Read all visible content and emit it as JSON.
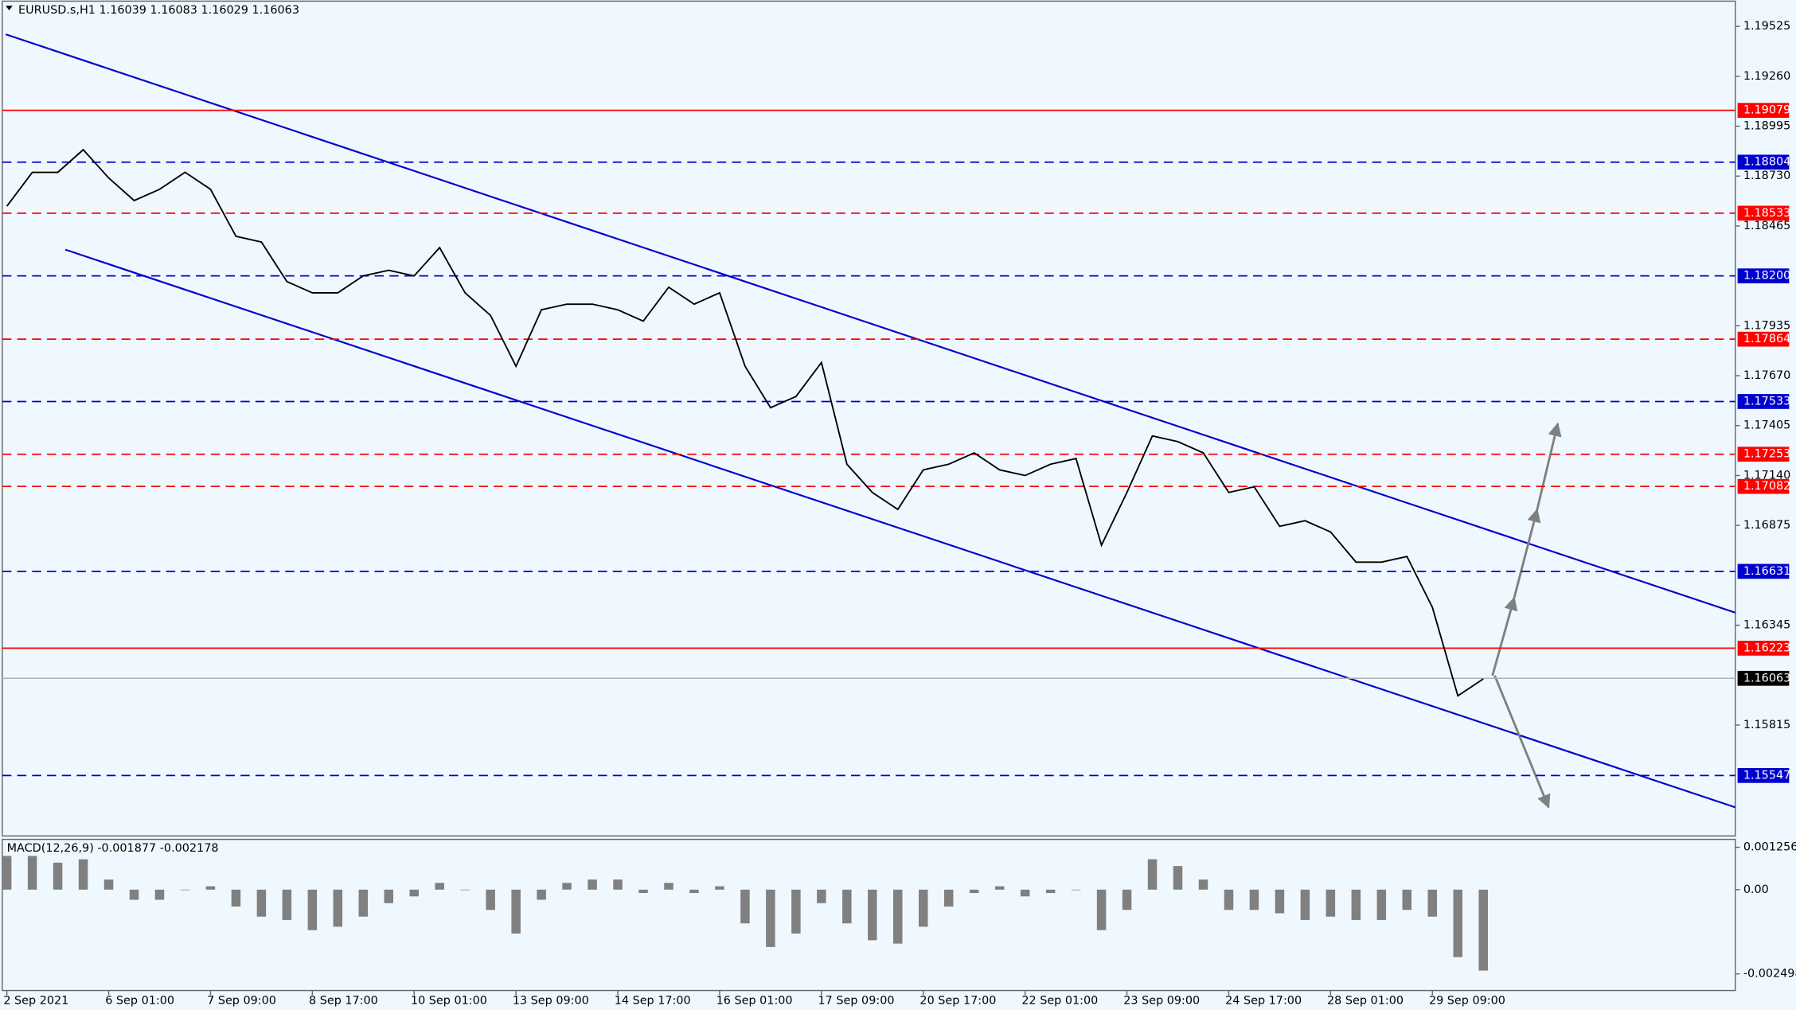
{
  "chart_data": [
    {
      "type": "line",
      "title": "EURUSD.s,H1  1.16039 1.16083 1.16029 1.16063",
      "categories": [
        "2 Sep 2021",
        null,
        null,
        null,
        "6 Sep 01:00",
        null,
        null,
        null,
        "7 Sep 09:00",
        null,
        null,
        null,
        "8 Sep 17:00",
        null,
        null,
        null,
        "10 Sep 01:00",
        null,
        null,
        null,
        "13 Sep 09:00",
        null,
        null,
        null,
        "14 Sep 17:00",
        null,
        null,
        null,
        "16 Sep 01:00",
        null,
        null,
        null,
        "17 Sep 09:00",
        null,
        null,
        null,
        "20 Sep 17:00",
        null,
        null,
        null,
        "22 Sep 01:00",
        null,
        null,
        null,
        "23 Sep 09:00",
        null,
        null,
        null,
        "24 Sep 17:00",
        null,
        null,
        null,
        "28 Sep 01:00",
        null,
        null,
        null,
        "29 Sep 09:00",
        null,
        null
      ],
      "series": [
        {
          "color": "#000000",
          "values": [
            1.1857,
            1.1875,
            1.1875,
            1.1887,
            1.1872,
            1.186,
            1.1866,
            1.1875,
            1.1866,
            1.1841,
            1.1838,
            1.1817,
            1.1811,
            1.1811,
            1.182,
            1.1823,
            1.182,
            1.1835,
            1.1811,
            1.1799,
            1.1772,
            1.1802,
            1.1805,
            1.1805,
            1.1802,
            1.1796,
            1.1814,
            1.1805,
            1.1811,
            1.1772,
            1.175,
            1.1756,
            1.1774,
            1.172,
            1.1705,
            1.1696,
            1.1717,
            1.172,
            1.1726,
            1.1717,
            1.1714,
            1.172,
            1.1723,
            1.1677,
            1.1705,
            1.1735,
            1.1732,
            1.1726,
            1.1705,
            1.1708,
            1.1687,
            1.169,
            1.1684,
            1.1668,
            1.1668,
            1.1671,
            1.1644,
            1.1597,
            1.1606
          ]
        }
      ],
      "ylim": [
        1.15226,
        1.19659
      ],
      "yticks": [
        1.19525,
        {
          "value": 1.1926,
          "label": "1.19260"
        },
        1.18995,
        {
          "value": 1.1873,
          "label": "1.18730"
        },
        1.18465,
        1.17935,
        {
          "value": 1.1767,
          "label": "1.17670"
        },
        1.17405,
        {
          "value": 1.1714,
          "label": "1.17140"
        },
        1.16875,
        1.16345,
        1.15815
      ],
      "levels": [
        {
          "value": 1.19079,
          "color": "#ff0000",
          "style": "solid"
        },
        {
          "value": 1.18804,
          "color": "#0000cd",
          "style": "dashed"
        },
        {
          "value": 1.18533,
          "color": "#ff0000",
          "style": "dashed"
        },
        {
          "value": 1.182,
          "label": "1.18200",
          "color": "#0000cd",
          "style": "dashed"
        },
        {
          "value": 1.17864,
          "color": "#ff0000",
          "style": "dashed"
        },
        {
          "value": 1.17533,
          "color": "#0000cd",
          "style": "dashed"
        },
        {
          "value": 1.17253,
          "color": "#ff0000",
          "style": "dashed"
        },
        {
          "value": 1.17082,
          "color": "#ff0000",
          "style": "dashed"
        },
        {
          "value": 1.16631,
          "color": "#0000cd",
          "style": "dashed"
        },
        {
          "value": 1.16223,
          "color": "#ff0000",
          "style": "solid"
        },
        {
          "value": 1.16063,
          "color": "#000000",
          "style": "current"
        },
        {
          "value": 1.15547,
          "color": "#0000cd",
          "style": "dashed"
        }
      ]
    },
    {
      "type": "bar",
      "title": "MACD(12,26,9) -0.001877 -0.002178",
      "color": "#808080",
      "values": [
        0.001,
        0.001,
        0.0008,
        0.0009,
        0.0003,
        -0.0003,
        -0.0003,
        0,
        0.0001,
        -0.0005,
        -0.0008,
        -0.0009,
        -0.0012,
        -0.0011,
        -0.0008,
        -0.0004,
        -0.0002,
        0.0002,
        0,
        -0.0006,
        -0.0013,
        -0.0003,
        0.0002,
        0.0003,
        0.0003,
        -0.0001,
        0.0002,
        -0.0001,
        0.0001,
        -0.001,
        -0.0017,
        -0.0013,
        -0.0004,
        -0.001,
        -0.0015,
        -0.0016,
        -0.0011,
        -0.0005,
        -0.0001,
        0.0001,
        -0.0002,
        -0.0001,
        0,
        -0.0012,
        -0.0006,
        0.0009,
        0.0007,
        0.0003,
        -0.0006,
        -0.0006,
        -0.0007,
        -0.0009,
        -0.0008,
        -0.0009,
        -0.0009,
        -0.0006,
        -0.0008,
        -0.002,
        -0.0024
      ],
      "ylim": [
        -0.00299,
        0.00149
      ],
      "yticks": [
        0.001256,
        {
          "value": 0,
          "label": "0.00"
        },
        -0.002498
      ]
    }
  ]
}
